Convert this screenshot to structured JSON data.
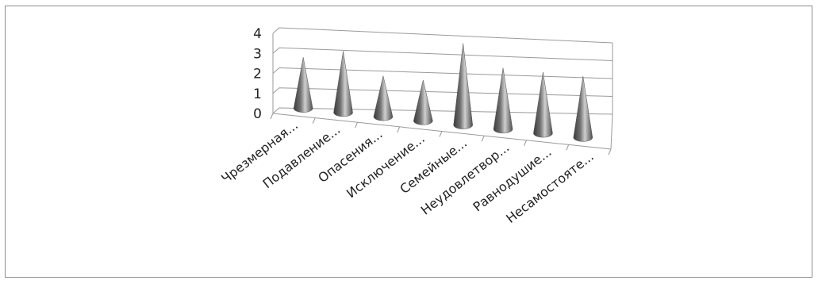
{
  "chart_data": {
    "type": "bar",
    "subtype": "3d-cone",
    "title": "",
    "xlabel": "",
    "ylabel": "",
    "ylim": [
      0,
      4
    ],
    "y_ticks": [
      "0",
      "1",
      "2",
      "3",
      "4"
    ],
    "grid": true,
    "legend": "none",
    "categories": [
      "Чрезмерная...",
      "Подавление...",
      "Опасения...",
      "Исключение...",
      "Семейные...",
      "Неудовлетвор...",
      "Равнодушие...",
      "Несамостояте..."
    ],
    "values": [
      2.5,
      3,
      2,
      2,
      4,
      3,
      3,
      3
    ],
    "colors": {
      "cone_dark": "#3c3c3c",
      "cone_mid": "#8a8a8a",
      "cone_light": "#d6d6d6",
      "grid": "#9a9a9a"
    }
  }
}
